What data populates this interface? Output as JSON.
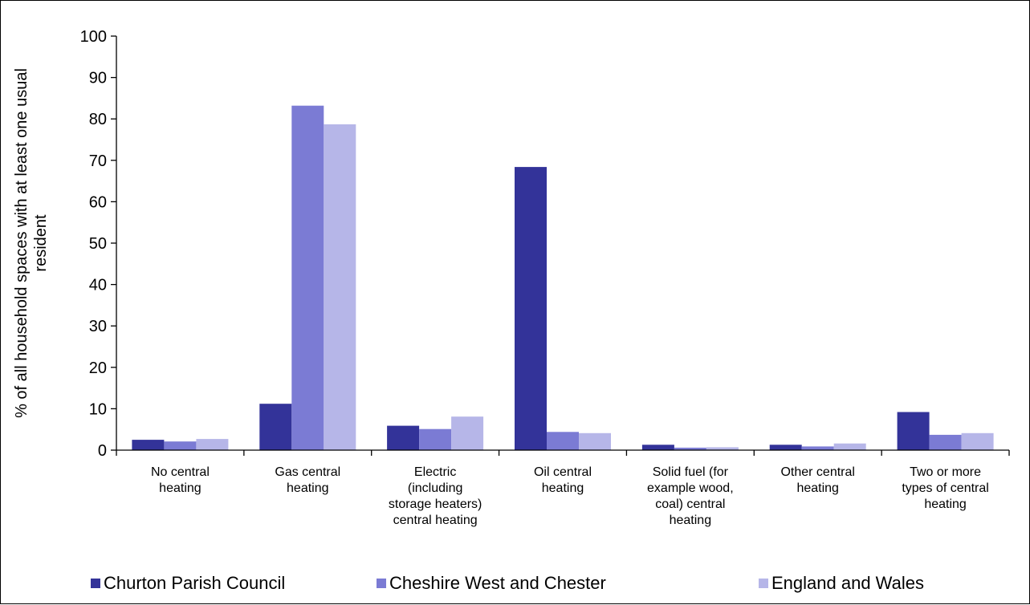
{
  "chart_data": {
    "type": "bar",
    "title": "",
    "xlabel": "",
    "ylabel": "% of all household spaces with at least one usual resident",
    "ylabel_lines": [
      "% of all household spaces with at least one usual",
      "resident"
    ],
    "ylim": [
      0,
      100
    ],
    "yticks": [
      0,
      10,
      20,
      30,
      40,
      50,
      60,
      70,
      80,
      90,
      100
    ],
    "grid": false,
    "legend_position": "bottom",
    "categories": [
      "No central heating",
      "Gas central heating",
      "Electric (including storage heaters) central heating",
      "Oil central heating",
      "Solid fuel (for example wood, coal) central heating",
      "Other central heating",
      "Two or more types of central heating"
    ],
    "category_label_lines": [
      [
        "No central",
        "heating"
      ],
      [
        "Gas central",
        "heating"
      ],
      [
        "Electric",
        "(including",
        "storage heaters)",
        "central heating"
      ],
      [
        "Oil central",
        "heating"
      ],
      [
        "Solid fuel (for",
        "example wood,",
        "coal) central",
        "heating"
      ],
      [
        "Other central",
        "heating"
      ],
      [
        "Two or more",
        "types of central",
        "heating"
      ]
    ],
    "series": [
      {
        "name": "Churton Parish Council",
        "color": "#333399",
        "values": [
          2.5,
          11.2,
          5.9,
          68.4,
          1.3,
          1.3,
          9.2
        ]
      },
      {
        "name": "Cheshire West and Chester",
        "color": "#7b7bd4",
        "values": [
          2.1,
          83.2,
          5.1,
          4.4,
          0.6,
          0.9,
          3.7
        ]
      },
      {
        "name": "England and Wales",
        "color": "#b6b6e8",
        "values": [
          2.7,
          78.7,
          8.1,
          4.1,
          0.7,
          1.6,
          4.1
        ]
      }
    ]
  }
}
